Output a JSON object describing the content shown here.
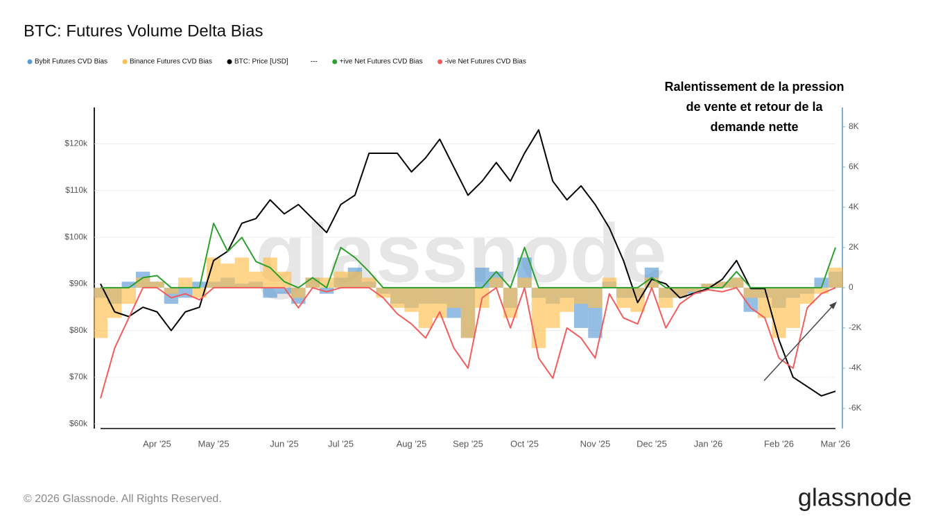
{
  "chart_data": {
    "type": "line",
    "title": "BTC: Futures Volume Delta Bias",
    "annotation": [
      "Ralentissement de la pression",
      "de vente et retour de la",
      "demande nette"
    ],
    "watermark": "glassnode",
    "footer": "© 2026 Glassnode. All Rights Reserved.",
    "logo": "glassnode",
    "categories": [
      null,
      null,
      null,
      null,
      "Apr '25",
      null,
      null,
      null,
      "May '25",
      null,
      null,
      null,
      null,
      "Jun '25",
      null,
      null,
      null,
      "Jul '25",
      null,
      null,
      null,
      null,
      "Aug '25",
      null,
      null,
      null,
      "Sep '25",
      null,
      null,
      null,
      "Oct '25",
      null,
      null,
      null,
      null,
      "Nov '25",
      null,
      null,
      null,
      "Dec '25",
      null,
      null,
      null,
      "Jan '26",
      null,
      null,
      null,
      null,
      "Feb '26",
      null,
      null,
      null,
      "Mar '26"
    ],
    "ylim": [
      59000,
      127800
    ],
    "yticks": [
      {
        "value": 60000,
        "label": "$60k"
      },
      {
        "value": 70000,
        "label": "$70k"
      },
      {
        "value": 80000,
        "label": "$80k"
      },
      {
        "value": 90000,
        "label": "$90k"
      },
      {
        "value": 100000,
        "label": "$100k"
      },
      {
        "value": 110000,
        "label": "$110k"
      },
      {
        "value": 120000,
        "label": "$120k"
      }
    ],
    "y2lim": [
      -7000,
      8960
    ],
    "y2ticks": [
      {
        "value": -6000,
        "label": "-6K"
      },
      {
        "value": -4000,
        "label": "-4K"
      },
      {
        "value": -2000,
        "label": "-2K"
      },
      0,
      {
        "value": 2000,
        "label": "2K"
      },
      {
        "value": 4000,
        "label": "4K"
      },
      {
        "value": 6000,
        "label": "6K"
      },
      {
        "value": 8000,
        "label": "8K"
      }
    ],
    "grid": true,
    "series": [
      {
        "name": "Bybit Futures CVD Bias",
        "type": "bar",
        "axis": "y2",
        "color": "#5b9bd5",
        "values": [
          -500,
          -800,
          300,
          800,
          300,
          -800,
          -500,
          300,
          300,
          500,
          200,
          300,
          -500,
          -300,
          -800,
          500,
          -300,
          500,
          1000,
          300,
          -300,
          -800,
          -1000,
          -800,
          -800,
          -1500,
          -2500,
          1000,
          800,
          -1000,
          1500,
          -500,
          -800,
          -500,
          -2000,
          -2500,
          300,
          -500,
          -500,
          1000,
          -500,
          -500,
          -300,
          200,
          300,
          500,
          -1200,
          -500,
          -1000,
          -500,
          -300,
          500,
          800
        ]
      },
      {
        "name": "Binance Futures CVD Bias",
        "type": "bar",
        "axis": "y2",
        "color": "#ffbf4d",
        "values": [
          -2500,
          -1500,
          -800,
          500,
          300,
          -300,
          500,
          -500,
          1500,
          1200,
          1500,
          800,
          1500,
          800,
          -500,
          500,
          500,
          800,
          800,
          500,
          -500,
          -1000,
          -1200,
          -2000,
          -1500,
          -1000,
          -2500,
          -1000,
          500,
          -1500,
          500,
          -3000,
          -2000,
          -1200,
          -800,
          -1000,
          500,
          -1000,
          -1200,
          500,
          -1000,
          -500,
          -200,
          200,
          300,
          500,
          -500,
          -1500,
          -2500,
          -2000,
          -800,
          -300,
          1000
        ]
      },
      {
        "name": "BTC: Price [USD]",
        "type": "line",
        "color": "#000000",
        "values": [
          90000,
          84000,
          83000,
          85000,
          84000,
          80000,
          84000,
          85000,
          95000,
          97000,
          103000,
          104000,
          108000,
          105000,
          107000,
          104000,
          101000,
          107000,
          109000,
          118000,
          118000,
          118000,
          114000,
          117000,
          121000,
          115000,
          109000,
          112000,
          116000,
          112000,
          118000,
          123000,
          112000,
          108000,
          111000,
          107000,
          102000,
          95000,
          86000,
          91000,
          90000,
          87000,
          88000,
          89000,
          91000,
          95000,
          89000,
          89000,
          78000,
          70000,
          68000,
          66000,
          67000
        ]
      },
      {
        "name": "---",
        "type": "line",
        "values": [
          null,
          null,
          null,
          null,
          null,
          null,
          null,
          null,
          null,
          null,
          null,
          null,
          null,
          null,
          null,
          null,
          null,
          null,
          null,
          null,
          null,
          null,
          null,
          null,
          null,
          null,
          null,
          null,
          null,
          null,
          null,
          null,
          null,
          null,
          null,
          null,
          null,
          null,
          null,
          null,
          null,
          null,
          null,
          null,
          null,
          null,
          null,
          null,
          null,
          null,
          null,
          null,
          null
        ]
      },
      {
        "name": "+ive Net Futures CVD Bias",
        "type": "line",
        "axis": "y2",
        "color": "#2ca02c",
        "values": [
          0,
          0,
          0,
          500,
          600,
          0,
          0,
          0,
          3200,
          1800,
          2500,
          1300,
          1000,
          300,
          0,
          500,
          0,
          2000,
          1500,
          800,
          0,
          0,
          0,
          0,
          0,
          0,
          0,
          0,
          800,
          0,
          2000,
          0,
          0,
          0,
          0,
          0,
          0,
          0,
          0,
          500,
          0,
          0,
          0,
          0,
          0,
          800,
          0,
          0,
          0,
          0,
          0,
          0,
          2000
        ]
      },
      {
        "name": "-ive Net Futures CVD Bias",
        "type": "line",
        "axis": "y2",
        "color": "#f25c5c",
        "values": [
          -5500,
          -3000,
          -1500,
          0,
          0,
          -500,
          -300,
          -600,
          0,
          0,
          0,
          0,
          0,
          0,
          -1000,
          0,
          -200,
          0,
          0,
          0,
          -500,
          -1300,
          -1800,
          -2500,
          -1200,
          -3000,
          -4000,
          -500,
          0,
          -2000,
          0,
          -3500,
          -4500,
          -2000,
          -2500,
          -3500,
          -300,
          -1500,
          -1800,
          0,
          -2000,
          -800,
          -300,
          -100,
          -200,
          0,
          -1000,
          -1500,
          -3500,
          -4000,
          -1000,
          -300,
          0
        ]
      }
    ]
  }
}
